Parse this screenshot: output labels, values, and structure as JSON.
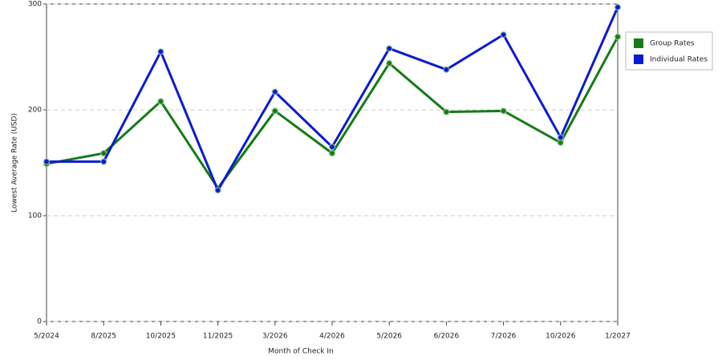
{
  "chart_data": {
    "type": "line",
    "x_label": "Month of Check In",
    "y_label": "Lowest Average Rate (USD)",
    "categories": [
      "5/2024",
      "8/2025",
      "10/2025",
      "11/2025",
      "3/2026",
      "4/2026",
      "5/2026",
      "6/2026",
      "7/2026",
      "10/2026",
      "1/2027"
    ],
    "series": [
      {
        "name": "Group Rates",
        "color": "#167a16",
        "values": [
          149,
          159,
          208,
          126,
          199,
          159,
          244,
          198,
          199,
          169,
          269
        ]
      },
      {
        "name": "Individual Rates",
        "color": "#0b1bd0",
        "values": [
          151,
          151,
          255,
          124,
          217,
          165,
          258,
          238,
          271,
          174,
          297
        ]
      }
    ],
    "ylim": [
      0,
      300
    ],
    "yticks": [
      0,
      100,
      200,
      300
    ],
    "grid": true,
    "legend": "right"
  }
}
